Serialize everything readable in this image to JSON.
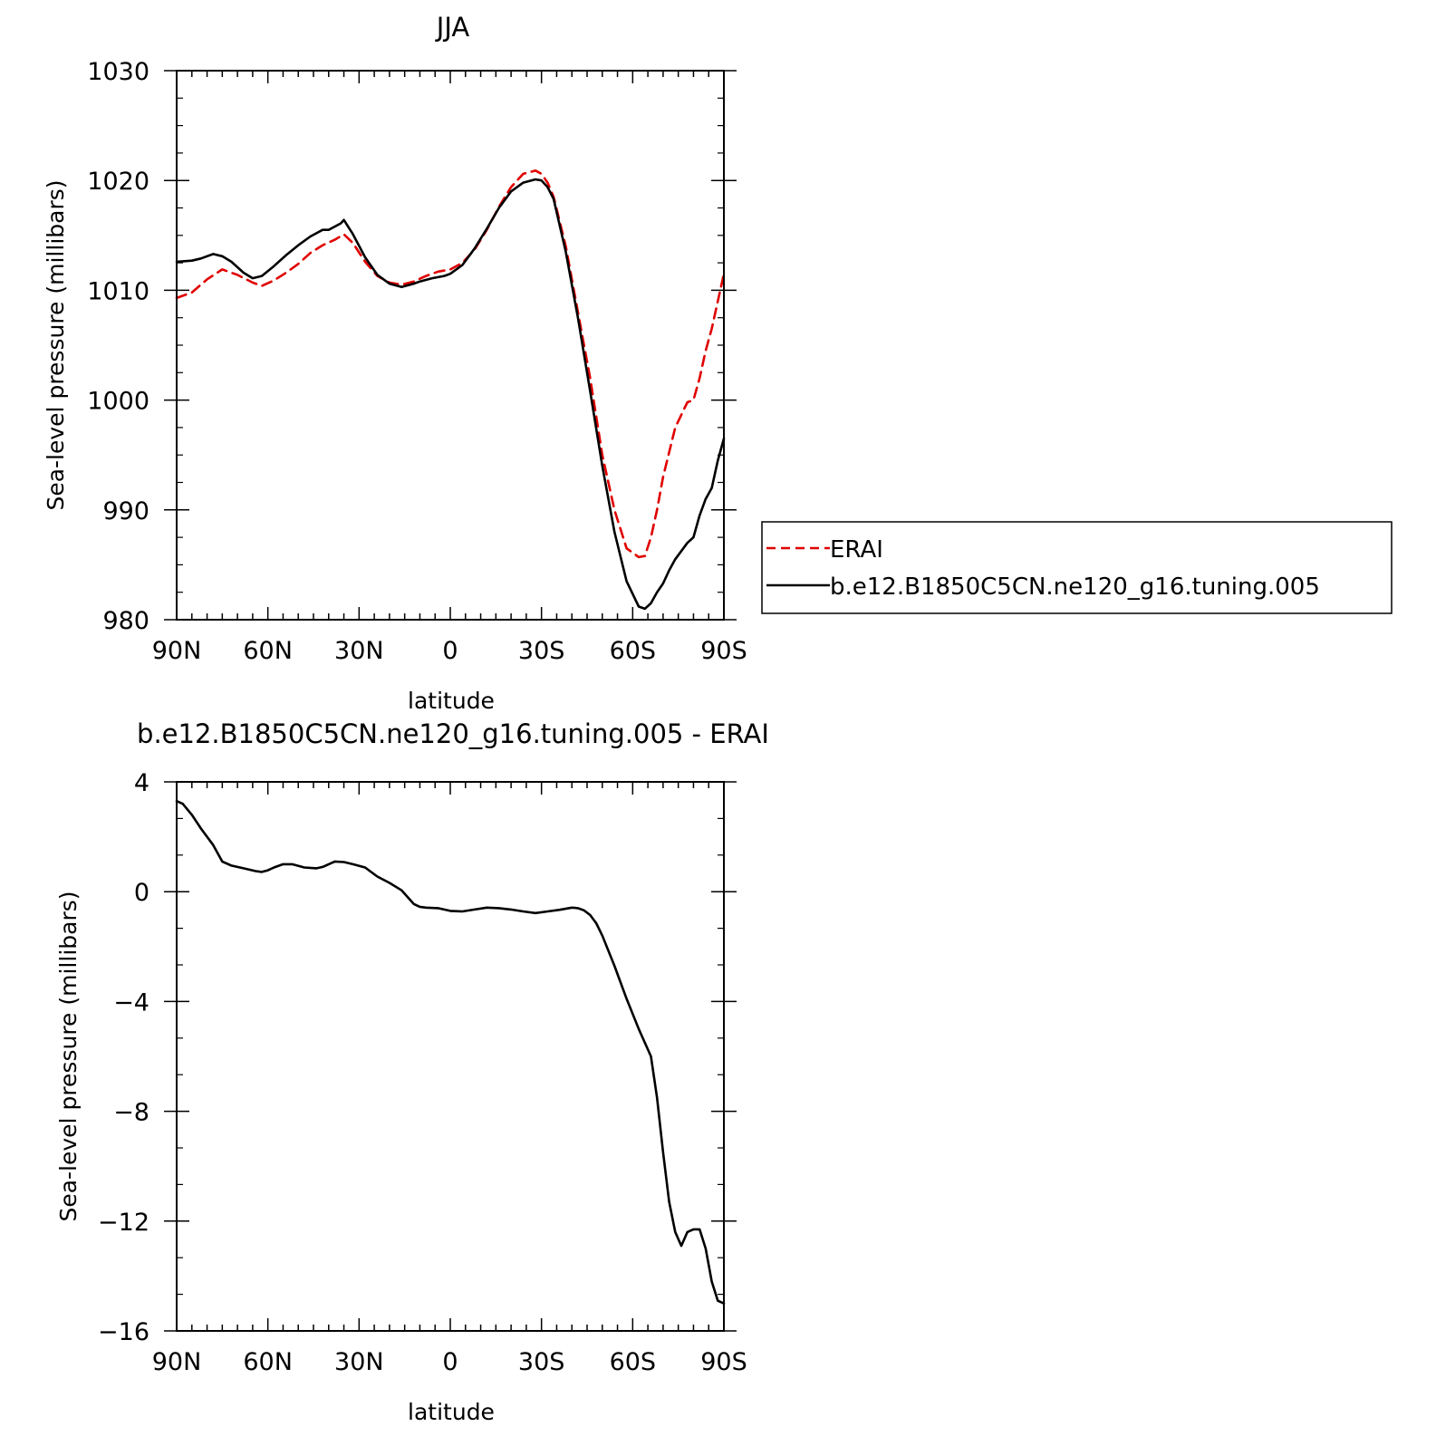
{
  "colors": {
    "erai": "#e00000",
    "model": "#000000",
    "axis": "#000000",
    "background": "#ffffff"
  },
  "chart_data": [
    {
      "type": "line",
      "title": "JJA",
      "xlabel": "latitude",
      "ylabel": "Sea-level pressure (millibars)",
      "xlim": [
        90,
        -90
      ],
      "ylim": [
        980,
        1030
      ],
      "xticks": [
        90,
        60,
        30,
        0,
        -30,
        -60,
        -90
      ],
      "xtick_labels": [
        "90N",
        "60N",
        "30N",
        "0",
        "30S",
        "60S",
        "90S"
      ],
      "yticks": [
        980,
        990,
        1000,
        1010,
        1020,
        1030
      ],
      "ytick_labels": [
        "980",
        "990",
        "1000",
        "1010",
        "1020",
        "1030"
      ],
      "legend_position": "right",
      "series": [
        {
          "name": "ERAI",
          "style": "dashed",
          "x": [
            90,
            85,
            80,
            75,
            70,
            65,
            62,
            58,
            54,
            50,
            46,
            42,
            38,
            35,
            32,
            28,
            24,
            20,
            16,
            12,
            8,
            4,
            0,
            -4,
            -8,
            -12,
            -16,
            -20,
            -24,
            -28,
            -30,
            -32,
            -34,
            -38,
            -42,
            -46,
            -50,
            -54,
            -58,
            -62,
            -64,
            -66,
            -68,
            -70,
            -74,
            -78,
            -80,
            -82,
            -84,
            -86,
            -88,
            -90
          ],
          "y": [
            1009.3,
            1009.8,
            1011.0,
            1011.9,
            1011.4,
            1010.7,
            1010.4,
            1010.9,
            1011.6,
            1012.4,
            1013.4,
            1014.1,
            1014.6,
            1015.1,
            1014.3,
            1012.6,
            1011.3,
            1010.7,
            1010.5,
            1010.8,
            1011.3,
            1011.7,
            1011.9,
            1012.5,
            1013.7,
            1015.5,
            1017.6,
            1019.4,
            1020.6,
            1020.9,
            1020.6,
            1019.8,
            1018.5,
            1014.0,
            1008.0,
            1002.0,
            995.0,
            990.0,
            986.5,
            985.7,
            985.8,
            987.5,
            990.0,
            993.0,
            997.5,
            999.8,
            1000.0,
            1002.0,
            1004.5,
            1006.5,
            1009.0,
            1011.5
          ]
        },
        {
          "name": "b.e12.B1850C5CN.ne120_g16.tuning.005",
          "style": "solid",
          "x": [
            90,
            85,
            82,
            78,
            75,
            72,
            68,
            65,
            62,
            58,
            54,
            50,
            46,
            42,
            40,
            38,
            36,
            35,
            32,
            28,
            24,
            20,
            16,
            12,
            10,
            6,
            2,
            0,
            -4,
            -8,
            -12,
            -16,
            -20,
            -24,
            -28,
            -30,
            -32,
            -34,
            -38,
            -42,
            -46,
            -50,
            -54,
            -58,
            -62,
            -64,
            -66,
            -68,
            -70,
            -72,
            -74,
            -78,
            -80,
            -82,
            -84,
            -86,
            -88,
            -90
          ],
          "y": [
            1012.6,
            1012.7,
            1012.9,
            1013.3,
            1013.1,
            1012.6,
            1011.6,
            1011.1,
            1011.3,
            1012.2,
            1013.2,
            1014.1,
            1014.9,
            1015.5,
            1015.5,
            1015.8,
            1016.1,
            1016.4,
            1015.1,
            1013.0,
            1011.4,
            1010.6,
            1010.3,
            1010.6,
            1010.8,
            1011.1,
            1011.3,
            1011.5,
            1012.3,
            1013.8,
            1015.6,
            1017.5,
            1019.0,
            1019.8,
            1020.1,
            1020.0,
            1019.4,
            1018.3,
            1013.5,
            1007.5,
            1000.8,
            994.0,
            988.0,
            983.5,
            981.2,
            981.0,
            981.5,
            982.5,
            983.3,
            984.5,
            985.5,
            987.0,
            987.5,
            989.5,
            991.0,
            992.0,
            994.5,
            996.5
          ]
        }
      ]
    },
    {
      "type": "line",
      "title": "b.e12.B1850C5CN.ne120_g16.tuning.005 - ERAI",
      "xlabel": "latitude",
      "ylabel": "Sea-level pressure (millibars)",
      "xlim": [
        90,
        -90
      ],
      "ylim": [
        -16,
        4
      ],
      "xticks": [
        90,
        60,
        30,
        0,
        -30,
        -60,
        -90
      ],
      "xtick_labels": [
        "90N",
        "60N",
        "30N",
        "0",
        "30S",
        "60S",
        "90S"
      ],
      "yticks": [
        -16,
        -12,
        -8,
        -4,
        0,
        4
      ],
      "ytick_labels": [
        "−16",
        "−12",
        "−8",
        "−4",
        "0",
        "4"
      ],
      "series": [
        {
          "style": "solid",
          "x": [
            90,
            88,
            85,
            82,
            78,
            75,
            72,
            68,
            64,
            62,
            60,
            58,
            55,
            52,
            48,
            44,
            42,
            38,
            35,
            32,
            28,
            24,
            20,
            16,
            12,
            10,
            8,
            4,
            0,
            -4,
            -8,
            -12,
            -16,
            -20,
            -24,
            -28,
            -32,
            -36,
            -40,
            -42,
            -44,
            -46,
            -48,
            -50,
            -54,
            -58,
            -62,
            -66,
            -68,
            -70,
            -72,
            -74,
            -76,
            -78,
            -80,
            -82,
            -84,
            -86,
            -88,
            -90
          ],
          "y": [
            3.3,
            3.2,
            2.8,
            2.3,
            1.7,
            1.1,
            0.95,
            0.85,
            0.75,
            0.72,
            0.78,
            0.88,
            1.0,
            1.0,
            0.88,
            0.85,
            0.9,
            1.1,
            1.08,
            1.0,
            0.88,
            0.55,
            0.32,
            0.05,
            -0.45,
            -0.55,
            -0.58,
            -0.6,
            -0.7,
            -0.72,
            -0.65,
            -0.58,
            -0.6,
            -0.65,
            -0.72,
            -0.78,
            -0.72,
            -0.66,
            -0.58,
            -0.6,
            -0.68,
            -0.85,
            -1.15,
            -1.6,
            -2.7,
            -3.9,
            -5.0,
            -6.0,
            -7.5,
            -9.5,
            -11.3,
            -12.4,
            -12.9,
            -12.4,
            -12.3,
            -12.3,
            -13.0,
            -14.2,
            -14.9,
            -15.0
          ]
        }
      ]
    }
  ]
}
